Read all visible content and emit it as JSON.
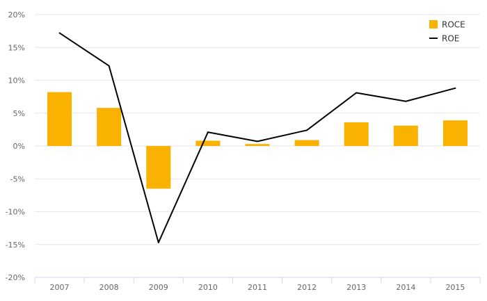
{
  "chart_data": {
    "type": "bar",
    "categories": [
      "2007",
      "2008",
      "2009",
      "2010",
      "2011",
      "2012",
      "2013",
      "2014",
      "2015"
    ],
    "series": [
      {
        "name": "ROCE",
        "type": "bar",
        "color": "#F9B200",
        "values": [
          8.2,
          5.8,
          -6.5,
          0.8,
          0.3,
          0.9,
          3.6,
          3.1,
          3.9
        ]
      },
      {
        "name": "ROE",
        "type": "line",
        "color": "#000000",
        "values": [
          17.2,
          12.2,
          -14.7,
          2.1,
          0.7,
          2.4,
          8.1,
          6.8,
          8.8
        ]
      }
    ],
    "y_ticks": [
      "20%",
      "15%",
      "10%",
      "5%",
      "0%",
      "-5%",
      "-10%",
      "-15%",
      "-20%"
    ],
    "ylim": [
      -20,
      20
    ],
    "ylabel": "",
    "xlabel": "",
    "title": "",
    "grid": true,
    "legend_position": "top-right"
  }
}
